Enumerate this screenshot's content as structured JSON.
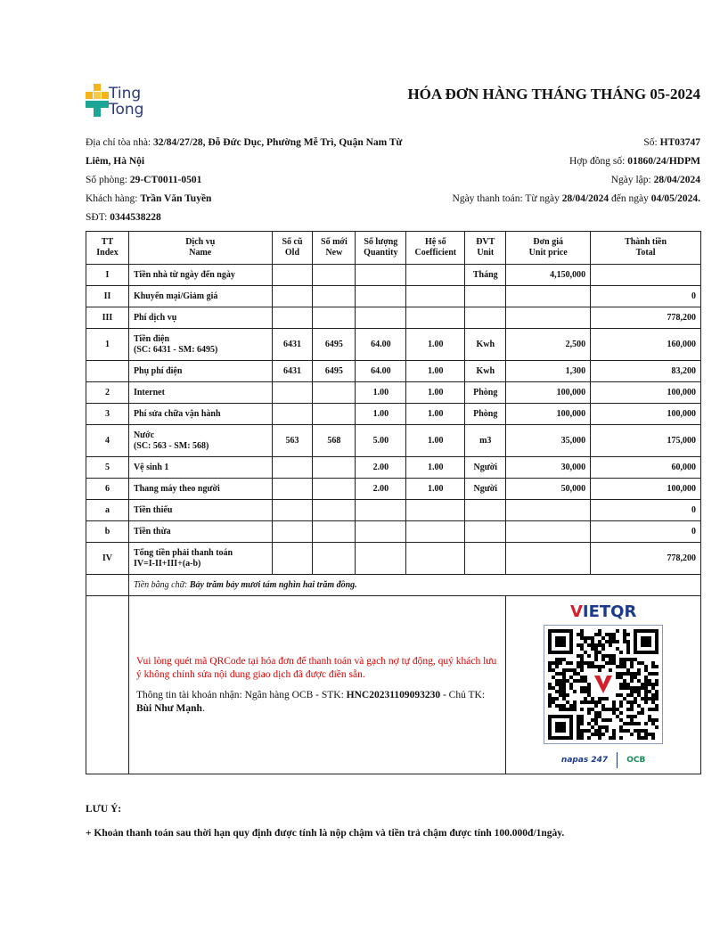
{
  "logo": {
    "line1": "Ting",
    "line2": "Tong"
  },
  "title": "HÓA ĐƠN HÀNG THÁNG THÁNG 05-2024",
  "left": {
    "address_label": "Địa chỉ tòa nhà: ",
    "address": "32/84/27/28, Đỗ Đức Dục, Phường Mễ Trì, Quận Nam Từ Liêm, Hà Nội",
    "room_label": "Số phòng: ",
    "room": "29-CT0011-0501",
    "customer_label": "Khách hàng: ",
    "customer": "Trần Văn Tuyền",
    "phone_label": "SĐT: ",
    "phone": "0344538228"
  },
  "right": {
    "no_label": "Số: ",
    "no": "HT03747",
    "contract_label": "Hợp đồng số: ",
    "contract": "01860/24/HDPM",
    "created_label": "Ngày lập: ",
    "created": "28/04/2024",
    "pay_label": "Ngày thanh toán: Từ ngày ",
    "pay_from": "28/04/2024",
    "pay_mid": " đến ngày ",
    "pay_to": "04/05/2024."
  },
  "headers": [
    [
      "TT",
      "Index"
    ],
    [
      "Dịch vụ",
      "Name"
    ],
    [
      "Số cũ",
      "Old"
    ],
    [
      "Số mới",
      "New"
    ],
    [
      "Số lượng",
      "Quantity"
    ],
    [
      "Hệ số",
      "Coefficient"
    ],
    [
      "ĐVT",
      "Unit"
    ],
    [
      "Đơn giá",
      "Unit price"
    ],
    [
      "Thành tiền",
      "Total"
    ]
  ],
  "rows": [
    [
      "I",
      "Tiền nhà từ ngày  đến ngày",
      "",
      "",
      "",
      "",
      "Tháng",
      "4,150,000",
      ""
    ],
    [
      "II",
      "Khuyến mại/Giảm giá",
      "",
      "",
      "",
      "",
      "",
      "",
      "0"
    ],
    [
      "III",
      "Phí dịch vụ",
      "",
      "",
      "",
      "",
      "",
      "",
      "778,200"
    ],
    [
      "1",
      "Tiền điện\n(SC: 6431 - SM: 6495)",
      "6431",
      "6495",
      "64.00",
      "1.00",
      "Kwh",
      "2,500",
      "160,000"
    ],
    [
      "",
      "Phụ phí điện",
      "6431",
      "6495",
      "64.00",
      "1.00",
      "Kwh",
      "1,300",
      "83,200"
    ],
    [
      "2",
      "Internet",
      "",
      "",
      "1.00",
      "1.00",
      "Phòng",
      "100,000",
      "100,000"
    ],
    [
      "3",
      "Phí sửa chữa vận hành",
      "",
      "",
      "1.00",
      "1.00",
      "Phòng",
      "100,000",
      "100,000"
    ],
    [
      "4",
      "Nước\n(SC: 563 - SM: 568)",
      "563",
      "568",
      "5.00",
      "1.00",
      "m3",
      "35,000",
      "175,000"
    ],
    [
      "5",
      "Vệ sinh 1",
      "",
      "",
      "2.00",
      "1.00",
      "Người",
      "30,000",
      "60,000"
    ],
    [
      "6",
      "Thang máy theo người",
      "",
      "",
      "2.00",
      "1.00",
      "Người",
      "50,000",
      "100,000"
    ],
    [
      "a",
      "Tiền thiếu",
      "",
      "",
      "",
      "",
      "",
      "",
      "0"
    ],
    [
      "b",
      "Tiền thừa",
      "",
      "",
      "",
      "",
      "",
      "",
      "0"
    ],
    [
      "IV",
      "Tổng tiền phải thanh toán\nIV=I-II+III+(a-b)",
      "",
      "",
      "",
      "",
      "",
      "",
      "778,200"
    ]
  ],
  "words": {
    "label": "Tiền bằng chữ: ",
    "value": "Bảy trăm bảy mươi tám nghìn hai trăm đồng."
  },
  "payment": {
    "notice": "Vui lòng quét mã QRCode tại hóa đơn để thanh toán và gạch nợ tự động, quý khách lưu ý không chỉnh sửa nội dung giao dịch đã được điền sẵn.",
    "acc_label": "Thông tin tài khoản nhận: Ngân hàng OCB - STK: ",
    "acc": "HNC20231109093230",
    "owner_label": " - Chủ TK: ",
    "owner": "Bùi Như Mạnh",
    "vietqr_v": "V",
    "vietqr_rest": "IETQR",
    "napas": "napas 247",
    "ocb": "OCB"
  },
  "note": {
    "title": "LƯU Ý:",
    "text": "+ Khoản thanh toán sau thời hạn quy định được tính là nộp chậm và tiền trả chậm được tính 100.000đ/1ngày."
  }
}
